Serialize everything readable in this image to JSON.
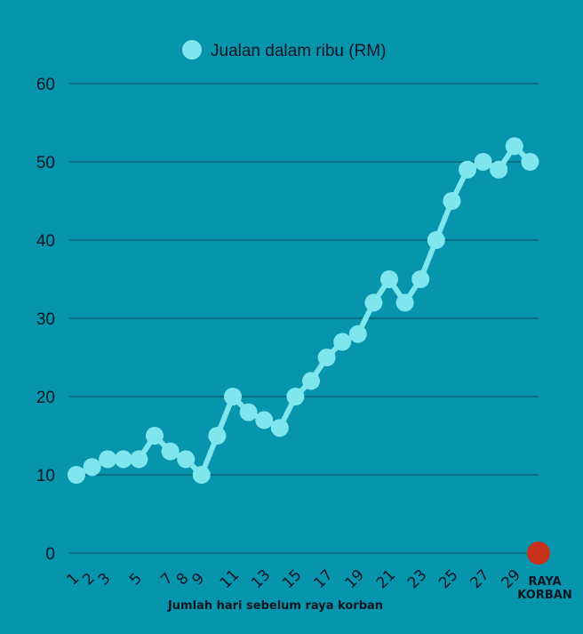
{
  "colors": {
    "background": "#0695ad",
    "series": "#7ee6ec",
    "grid": "#08475a",
    "text": "#0b1620",
    "event_marker": "#c8321a"
  },
  "chart_data": {
    "type": "line",
    "title": "",
    "xlabel": "Jumlah hari sebelum raya korban",
    "ylabel": "",
    "ylim": [
      0,
      60
    ],
    "yticks": [
      0,
      10,
      20,
      30,
      40,
      50,
      60
    ],
    "grid": true,
    "legend_position": "top-center",
    "x": [
      1,
      2,
      3,
      4,
      5,
      6,
      7,
      8,
      9,
      10,
      11,
      12,
      13,
      14,
      15,
      16,
      17,
      18,
      19,
      20,
      21,
      22,
      23,
      24,
      25,
      26,
      27,
      28,
      29,
      30
    ],
    "xtick_labels": [
      "1",
      "2",
      "3",
      "5",
      "7",
      "8",
      "9",
      "11",
      "13",
      "15",
      "17",
      "19",
      "21",
      "23",
      "25",
      "27",
      "29"
    ],
    "xtick_positions": [
      1,
      2,
      3,
      5,
      7,
      8,
      9,
      11,
      13,
      15,
      17,
      19,
      21,
      23,
      25,
      27,
      29
    ],
    "series": [
      {
        "name": "Jualan dalam ribu (RM)",
        "values": [
          10,
          11,
          12,
          12,
          12,
          15,
          13,
          12,
          10,
          15,
          20,
          18,
          17,
          16,
          20,
          22,
          25,
          27,
          28,
          32,
          35,
          32,
          35,
          40,
          45,
          49,
          50,
          49,
          52,
          50
        ]
      }
    ],
    "event": {
      "label_line1": "RAYA",
      "label_line2": "KORBAN",
      "y": 0
    }
  }
}
